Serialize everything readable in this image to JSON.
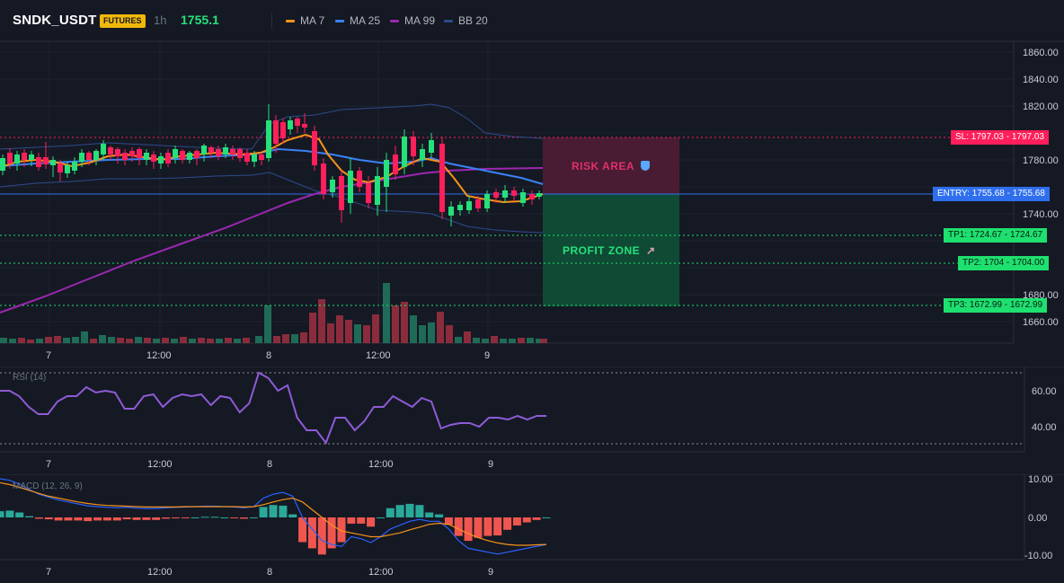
{
  "header": {
    "symbol": "SNDK_USDT",
    "badge": "FUTURES",
    "timeframe": "1h",
    "last_price": "1755.1",
    "legend": [
      {
        "label": "MA 7",
        "color": "#f7931a"
      },
      {
        "label": "MA 25",
        "color": "#3b82f6"
      },
      {
        "label": "MA 99",
        "color": "#9c27b0"
      },
      {
        "label": "BB 20",
        "color": "#2e4a8c"
      }
    ]
  },
  "price_axis": [
    "1860.00",
    "1840.00",
    "1820.00",
    "1800.00",
    "1780.00",
    "1760.00",
    "1740.00",
    "1720.00",
    "1700.00",
    "1680.00",
    "1660.00"
  ],
  "time_axis": [
    "7",
    "12:00",
    "8",
    "12:00",
    "9"
  ],
  "levels": {
    "sl": {
      "label": "SL: 1797.03",
      "axis": "1797.03",
      "color": "#ff1f5a"
    },
    "entry": {
      "label": "ENTRY: 1755.68",
      "axis": "1755.68",
      "color": "#2f6fed"
    },
    "tp1": {
      "label": "TP1: 1724.67",
      "axis": "1724.67",
      "color": "#1ee06f"
    },
    "tp2": {
      "label": "TP2: 1704",
      "axis": "1704.00",
      "color": "#1ee06f"
    },
    "tp3": {
      "label": "TP3: 1672.99",
      "axis": "1672.99",
      "color": "#1ee06f"
    }
  },
  "zones": {
    "risk": {
      "label": "RISK AREA",
      "icon": "shield-icon"
    },
    "profit": {
      "label": "PROFIT ZONE",
      "icon": "rocket-icon"
    }
  },
  "rsi": {
    "title": "RSI (14)",
    "axis": [
      "60.00",
      "40.00"
    ],
    "values": [
      60,
      60,
      57,
      51,
      47,
      47,
      54,
      57,
      57,
      62,
      59,
      60,
      59,
      50,
      50,
      57,
      58,
      51,
      56,
      58,
      57,
      58,
      52,
      57,
      56,
      48,
      53,
      70,
      67,
      60,
      63,
      45,
      38,
      38,
      31,
      45,
      45,
      38,
      43,
      51,
      51,
      57,
      54,
      51,
      56,
      54,
      39,
      41,
      42,
      42,
      40,
      45,
      45,
      44,
      46,
      44,
      46,
      46
    ]
  },
  "macd": {
    "title": "MACD (12, 26, 9)",
    "axis": [
      "10.00",
      "0.00",
      "-10.00"
    ],
    "macd_line": [
      10,
      9.6,
      8.6,
      7.2,
      6,
      5.2,
      4.5,
      4,
      3.5,
      3,
      2.8,
      2.6,
      2.5,
      2.6,
      2.4,
      2.3,
      2.3,
      2.5,
      2.6,
      2.7,
      2.8,
      2.9,
      2.9,
      2.8,
      2.7,
      2.5,
      2.8,
      5,
      6,
      6.5,
      5.5,
      0,
      -3,
      -6,
      -7,
      -7.5,
      -5,
      -5.5,
      -6.5,
      -5,
      -3,
      -2,
      -1,
      -0.5,
      -1,
      -1,
      -3,
      -6,
      -8,
      -8.5,
      -9,
      -9.5,
      -9,
      -8.5,
      -8,
      -7.5,
      -7
    ],
    "signal_line": [
      9,
      8.5,
      7.8,
      7,
      6.2,
      5.5,
      5,
      4.5,
      4,
      3.6,
      3.3,
      3.1,
      3,
      2.9,
      2.8,
      2.7,
      2.7,
      2.7,
      2.7,
      2.8,
      2.8,
      2.8,
      2.8,
      2.8,
      2.8,
      2.7,
      2.8,
      3.3,
      4,
      4.6,
      5,
      4,
      2,
      0,
      -2,
      -3.5,
      -4,
      -4.5,
      -5,
      -5,
      -4.5,
      -4,
      -3.2,
      -2.5,
      -1.8,
      -1.5,
      -1.8,
      -3,
      -4.2,
      -5.2,
      -6,
      -6.6,
      -7,
      -7.2,
      -7.2,
      -7.1,
      -7
    ]
  }
}
